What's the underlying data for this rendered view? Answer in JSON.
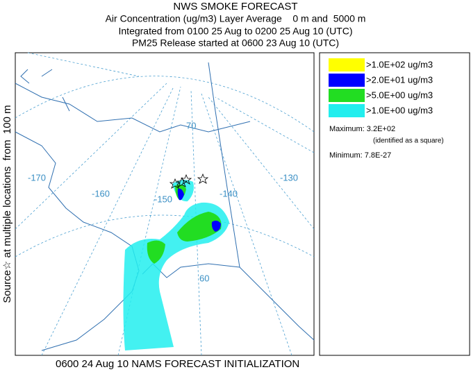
{
  "header": {
    "lines": [
      "NWS SMOKE FORECAST",
      "Air Concentration (ug/m3) Layer Average    0 m and  5000 m",
      "Integrated from 0100 25 Aug to 0200 25 Aug 10 (UTC)",
      "PM25 Release started at 0600 23 Aug 10 (UTC)"
    ]
  },
  "side_label": "Source☆ at multiple locations  from  100 m",
  "footer": "0600 24 Aug 10 NAMS FORECAST INITIALIZATION",
  "map": {
    "graticule_labels": [
      "-170",
      "-160",
      "-150",
      "-140",
      "-130",
      "70",
      "60"
    ]
  },
  "legend": {
    "items": [
      {
        "label": ">1.0E+02 ug/m3",
        "color": "#ffff00"
      },
      {
        "label": ">2.0E+01 ug/m3",
        "color": "#0000ff"
      },
      {
        "label": ">5.0E+00 ug/m3",
        "color": "#22dd22"
      },
      {
        "label": ">1.0E+00 ug/m3",
        "color": "#22eeee"
      }
    ],
    "maximum": "Maximum: 3.2E+02",
    "maximum_note": "(identified as a square)",
    "minimum": "Minimum: 7.8E-27"
  }
}
